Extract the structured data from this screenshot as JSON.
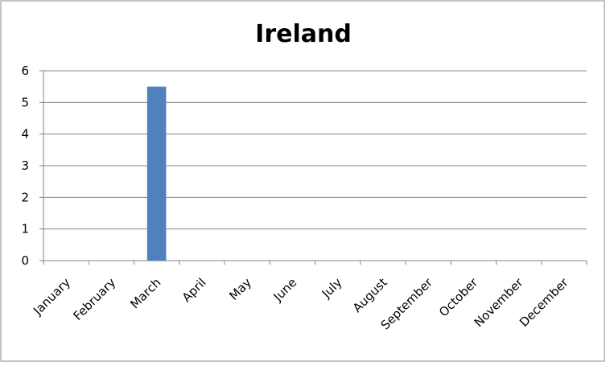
{
  "chart_data": {
    "type": "bar",
    "title": "Ireland",
    "categories": [
      "January",
      "February",
      "March",
      "April",
      "May",
      "June",
      "July",
      "August",
      "September",
      "October",
      "November",
      "December"
    ],
    "values": [
      0,
      0,
      5.5,
      0,
      0,
      0,
      0,
      0,
      0,
      0,
      0,
      0
    ],
    "color": "#4f81bd",
    "ylim": [
      0,
      6
    ],
    "yticks": [
      0,
      1,
      2,
      3,
      4,
      5,
      6
    ],
    "grid": true
  }
}
